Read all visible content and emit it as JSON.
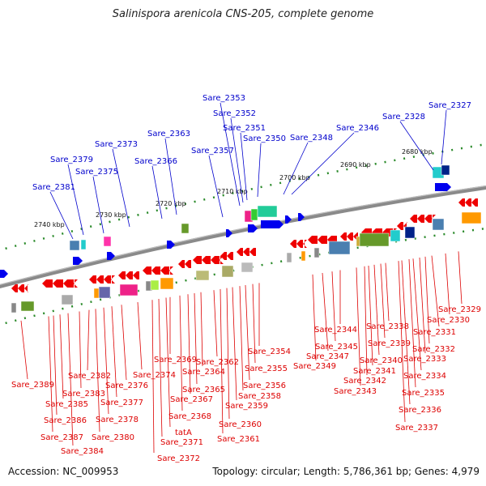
{
  "title": "Salinispora arenicola CNS-205, complete genome",
  "footer": {
    "accession": "Accession: NC_009953",
    "summary": "Topology: circular; Length: 5,786,361 bp; Genes: 4,979"
  },
  "scale": [
    "2680 kbp",
    "2690 kbp",
    "2700 kbp",
    "2710 kbp",
    "2720 kbp",
    "2730 kbp",
    "2740 kbp"
  ],
  "upper_labels": [
    "Sare_2327",
    "Sare_2328",
    "Sare_2346",
    "Sare_2348",
    "Sare_2350",
    "Sare_2351",
    "Sare_2352",
    "Sare_2353",
    "Sare_2357",
    "Sare_2363",
    "Sare_2366",
    "Sare_2373",
    "Sare_2375",
    "Sare_2379",
    "Sare_2381"
  ],
  "lower_labels": [
    "Sare_2329",
    "Sare_2330",
    "Sare_2331",
    "Sare_2332",
    "Sare_2333",
    "Sare_2334",
    "Sare_2335",
    "Sare_2336",
    "Sare_2337",
    "Sare_2338",
    "Sare_2339",
    "Sare_2340",
    "Sare_2341",
    "Sare_2342",
    "Sare_2343",
    "Sare_2344",
    "Sare_2345",
    "Sare_2347",
    "Sare_2349",
    "Sare_2354",
    "Sare_2355",
    "Sare_2356",
    "Sare_2358",
    "Sare_2359",
    "Sare_2360",
    "Sare_2361",
    "Sare_2362",
    "Sare_2364",
    "Sare_2365",
    "Sare_2367",
    "Sare_2368",
    "Sare_2369",
    "tatA",
    "Sare_2371",
    "Sare_2372",
    "Sare_2374",
    "Sare_2376",
    "Sare_2377",
    "Sare_2378",
    "Sare_2380",
    "Sare_2382",
    "Sare_2383",
    "Sare_2384",
    "Sare_2385",
    "Sare_2386",
    "Sare_2387",
    "Sare_2389"
  ],
  "colors": {
    "upper_label": "#0000cc",
    "lower_label": "#dd0000",
    "forward_gene": "#0000ee",
    "reverse_gene": "#ee0000",
    "backbone": "#777777",
    "ticks": "#008800"
  }
}
